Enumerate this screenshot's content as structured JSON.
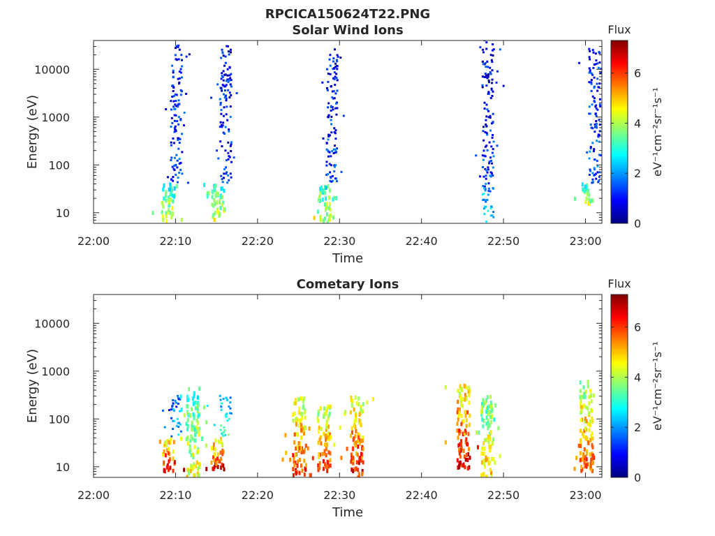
{
  "figure_title": "RPCICA150624T22.PNG",
  "chart_data": [
    {
      "type": "heatmap",
      "title": "Solar Wind Ions",
      "xlabel": "Time",
      "ylabel": "Energy (eV)",
      "yscale": "log",
      "x_ticks": [
        "22:00",
        "22:10",
        "22:20",
        "22:30",
        "22:40",
        "22:50",
        "23:00"
      ],
      "x_range": [
        "22:00",
        "23:02"
      ],
      "y_ticks": [
        {
          "v": 10,
          "label": "10"
        },
        {
          "v": 100,
          "label": "100"
        },
        {
          "v": 1000,
          "label": "1000"
        },
        {
          "v": 10000,
          "label": "10000"
        }
      ],
      "y_range": [
        6,
        40000
      ],
      "colorbar": {
        "title": "Flux",
        "label": "eV⁻¹cm⁻²sr⁻¹s⁻¹",
        "range": [
          0,
          7.3
        ],
        "ticks": [
          "0",
          "2",
          "4",
          "6"
        ],
        "colormap": "jet"
      },
      "bursts": [
        {
          "t": "22:09",
          "e_lo": 6,
          "e_hi": 40,
          "level": 4.4
        },
        {
          "t": "22:10",
          "e_lo": 40,
          "e_hi": 30000,
          "level": 1.3
        },
        {
          "t": "22:15",
          "e_lo": 6,
          "e_hi": 40,
          "level": 4.5
        },
        {
          "t": "22:16",
          "e_lo": 40,
          "e_hi": 30000,
          "level": 1.3
        },
        {
          "t": "22:28",
          "e_lo": 6,
          "e_hi": 40,
          "level": 4.4
        },
        {
          "t": "22:29",
          "e_lo": 40,
          "e_hi": 25000,
          "level": 1.3
        },
        {
          "t": "22:48",
          "e_lo": 6,
          "e_hi": 40,
          "level": 2.6
        },
        {
          "t": "22:48",
          "e_lo": 40,
          "e_hi": 40000,
          "level": 1.2
        },
        {
          "t": "23:00",
          "e_lo": 15,
          "e_hi": 40,
          "level": 4.3
        },
        {
          "t": "23:01",
          "e_lo": 40,
          "e_hi": 30000,
          "level": 1.4
        }
      ]
    },
    {
      "type": "heatmap",
      "title": "Cometary Ions",
      "xlabel": "Time",
      "ylabel": "Energy (eV)",
      "yscale": "log",
      "x_ticks": [
        "22:00",
        "22:10",
        "22:20",
        "22:30",
        "22:40",
        "22:50",
        "23:00"
      ],
      "x_range": [
        "22:00",
        "23:02"
      ],
      "y_ticks": [
        {
          "v": 10,
          "label": "10"
        },
        {
          "v": 100,
          "label": "100"
        },
        {
          "v": 1000,
          "label": "1000"
        },
        {
          "v": 10000,
          "label": "10000"
        }
      ],
      "y_range": [
        6,
        40000
      ],
      "colorbar": {
        "title": "Flux",
        "label": "eV⁻¹cm⁻²sr⁻¹s⁻¹",
        "range": [
          0,
          7.3
        ],
        "ticks": [
          "0",
          "2",
          "4",
          "6"
        ],
        "colormap": "jet"
      },
      "bursts": [
        {
          "t": "22:09",
          "e_lo": 8,
          "e_hi": 40,
          "level": 6.6
        },
        {
          "t": "22:10",
          "e_lo": 40,
          "e_hi": 300,
          "level": 2.2
        },
        {
          "t": "22:12",
          "e_lo": 6,
          "e_hi": 500,
          "level": 4.5
        },
        {
          "t": "22:15",
          "e_lo": 8,
          "e_hi": 40,
          "level": 6.6
        },
        {
          "t": "22:16",
          "e_lo": 40,
          "e_hi": 300,
          "level": 3.2
        },
        {
          "t": "22:25",
          "e_lo": 6,
          "e_hi": 300,
          "level": 6.2
        },
        {
          "t": "22:28",
          "e_lo": 8,
          "e_hi": 200,
          "level": 6.0
        },
        {
          "t": "22:32",
          "e_lo": 6,
          "e_hi": 300,
          "level": 6.4
        },
        {
          "t": "22:45",
          "e_lo": 8,
          "e_hi": 500,
          "level": 6.7
        },
        {
          "t": "22:48",
          "e_lo": 6,
          "e_hi": 300,
          "level": 5.0
        },
        {
          "t": "23:00",
          "e_lo": 8,
          "e_hi": 600,
          "level": 5.8
        }
      ]
    }
  ]
}
